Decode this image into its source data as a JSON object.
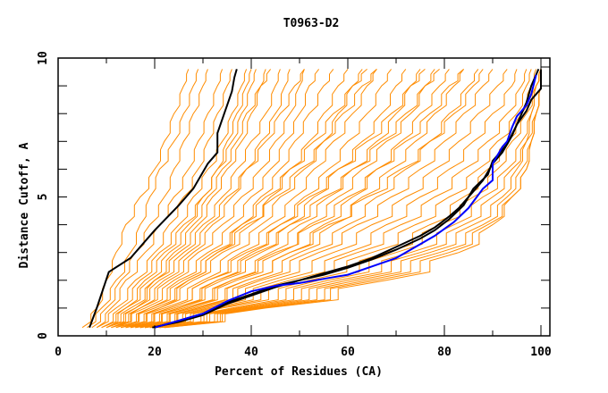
{
  "chart_data": {
    "type": "line",
    "title": "T0963-D2",
    "xlabel": "Percent of Residues (CA)",
    "ylabel": "Distance Cutoff, A",
    "xlim": [
      0,
      100
    ],
    "ylim": [
      0,
      10
    ],
    "x_major_ticks": [
      0,
      20,
      40,
      60,
      80,
      100
    ],
    "x_minor_ticks": [
      10,
      30,
      50,
      70,
      90
    ],
    "x_tick_labels": [
      "0",
      "20",
      "40",
      "60",
      "80",
      "100"
    ],
    "y_major_ticks": [
      0,
      5,
      10
    ],
    "y_minor_ticks": [
      1,
      2,
      3,
      4,
      6,
      7,
      8,
      9
    ],
    "y_tick_labels": [
      "0",
      "5",
      "10"
    ],
    "grid": false,
    "legend": "none",
    "colors": {
      "models": "#FF8C00",
      "highlight_black": "#000000",
      "highlight_blue": "#0000FF"
    },
    "y_levels": [
      0.3,
      1,
      2,
      3,
      4,
      5,
      6,
      7,
      8,
      9,
      9.6
    ],
    "series": [
      {
        "name": "model-curves",
        "color": "#FF8C00",
        "curves_x_at_y_levels": [
          [
            5,
            8,
            10,
            12,
            14,
            17,
            20,
            22,
            24,
            26,
            27
          ],
          [
            6,
            9,
            12,
            15,
            17,
            19,
            21,
            24,
            26,
            28,
            29
          ],
          [
            7,
            10,
            13,
            16,
            19,
            22,
            24,
            26,
            28,
            30,
            31
          ],
          [
            8,
            11,
            14,
            18,
            21,
            24,
            27,
            29,
            31,
            33,
            34
          ],
          [
            8,
            12,
            16,
            20,
            23,
            26,
            29,
            31,
            33,
            35,
            36
          ],
          [
            9,
            13,
            17,
            21,
            25,
            28,
            31,
            34,
            36,
            38,
            39
          ],
          [
            9,
            14,
            19,
            23,
            27,
            30,
            33,
            36,
            38,
            40,
            41
          ],
          [
            10,
            15,
            20,
            25,
            29,
            32,
            35,
            38,
            40,
            42,
            43
          ],
          [
            10,
            16,
            21,
            26,
            30,
            34,
            37,
            40,
            43,
            45,
            46
          ],
          [
            11,
            17,
            23,
            28,
            32,
            36,
            39,
            42,
            45,
            47,
            48
          ],
          [
            11,
            18,
            24,
            29,
            34,
            38,
            42,
            45,
            48,
            50,
            51
          ],
          [
            12,
            19,
            25,
            31,
            36,
            40,
            44,
            47,
            50,
            52,
            54
          ],
          [
            12,
            20,
            27,
            33,
            38,
            42,
            46,
            49,
            52,
            55,
            57
          ],
          [
            13,
            21,
            28,
            34,
            40,
            44,
            48,
            52,
            55,
            58,
            60
          ],
          [
            13,
            22,
            30,
            36,
            42,
            46,
            51,
            55,
            58,
            61,
            63
          ],
          [
            14,
            23,
            31,
            38,
            44,
            49,
            53,
            57,
            61,
            64,
            66
          ],
          [
            14,
            24,
            33,
            40,
            46,
            51,
            56,
            60,
            64,
            67,
            69
          ],
          [
            15,
            25,
            34,
            42,
            48,
            53,
            58,
            63,
            67,
            70,
            72
          ],
          [
            15,
            26,
            36,
            44,
            50,
            56,
            61,
            66,
            70,
            73,
            75
          ],
          [
            16,
            27,
            37,
            46,
            52,
            58,
            63,
            68,
            73,
            76,
            78
          ],
          [
            16,
            28,
            39,
            48,
            55,
            61,
            66,
            71,
            75,
            79,
            81
          ],
          [
            17,
            29,
            41,
            50,
            57,
            63,
            69,
            74,
            78,
            82,
            84
          ],
          [
            17,
            30,
            42,
            52,
            60,
            66,
            72,
            77,
            81,
            85,
            87
          ],
          [
            18,
            31,
            44,
            54,
            62,
            69,
            75,
            80,
            84,
            88,
            90
          ],
          [
            18,
            32,
            46,
            57,
            65,
            72,
            78,
            83,
            87,
            91,
            93
          ],
          [
            19,
            33,
            48,
            60,
            68,
            75,
            81,
            86,
            90,
            94,
            95
          ],
          [
            19,
            34,
            50,
            62,
            71,
            78,
            84,
            89,
            93,
            96,
            97
          ],
          [
            20,
            36,
            52,
            65,
            74,
            81,
            87,
            91,
            95,
            97,
            98
          ],
          [
            20,
            37,
            54,
            68,
            77,
            84,
            89,
            93,
            96,
            98,
            99
          ],
          [
            20,
            38,
            56,
            70,
            79,
            86,
            91,
            94,
            97,
            99,
            100
          ],
          [
            20,
            39,
            58,
            73,
            82,
            88,
            93,
            96,
            98,
            99,
            100
          ],
          [
            21,
            40,
            60,
            75,
            84,
            90,
            94,
            97,
            98,
            99,
            100
          ],
          [
            21,
            41,
            62,
            77,
            86,
            92,
            95,
            97,
            99,
            100,
            100
          ],
          [
            21,
            42,
            64,
            79,
            88,
            93,
            96,
            98,
            99,
            100,
            100
          ],
          [
            22,
            42,
            66,
            81,
            89,
            94,
            97,
            98,
            99,
            100,
            100
          ],
          [
            22,
            43,
            68,
            83,
            90,
            94,
            97,
            98,
            99,
            100,
            100
          ],
          [
            10,
            14,
            18,
            22,
            26,
            30,
            33,
            35,
            37,
            39,
            40
          ],
          [
            12,
            17,
            22,
            27,
            31,
            35,
            39,
            43,
            46,
            49,
            51
          ],
          [
            14,
            21,
            27,
            33,
            39,
            45,
            50,
            55,
            59,
            63,
            66
          ],
          [
            16,
            25,
            33,
            41,
            48,
            55,
            61,
            67,
            72,
            76,
            79
          ],
          [
            18,
            29,
            39,
            48,
            56,
            64,
            71,
            77,
            82,
            86,
            88
          ],
          [
            11,
            16,
            20,
            24,
            28,
            31,
            34,
            37,
            39,
            42,
            44
          ],
          [
            13,
            19,
            26,
            32,
            38,
            43,
            48,
            53,
            57,
            61,
            64
          ],
          [
            15,
            23,
            31,
            39,
            46,
            52,
            58,
            64,
            69,
            73,
            76
          ],
          [
            17,
            27,
            36,
            45,
            53,
            60,
            66,
            72,
            77,
            81,
            84
          ]
        ]
      },
      {
        "name": "black-left",
        "color": "#000000",
        "points": [
          [
            6.5,
            0.3
          ],
          [
            8,
            1.0
          ],
          [
            10.5,
            2.3
          ],
          [
            15,
            2.8
          ],
          [
            20,
            3.8
          ],
          [
            25,
            4.7
          ],
          [
            28,
            5.3
          ],
          [
            31,
            6.2
          ],
          [
            33,
            6.6
          ],
          [
            33,
            7.3
          ],
          [
            35,
            8.3
          ],
          [
            36,
            8.8
          ],
          [
            36.5,
            9.3
          ],
          [
            37,
            9.6
          ]
        ]
      },
      {
        "name": "black-right-1",
        "color": "#000000",
        "points": [
          [
            20,
            0.3
          ],
          [
            25,
            0.55
          ],
          [
            30,
            0.8
          ],
          [
            35,
            1.2
          ],
          [
            40,
            1.5
          ],
          [
            45,
            1.8
          ],
          [
            50,
            2.0
          ],
          [
            55,
            2.25
          ],
          [
            60,
            2.5
          ],
          [
            65,
            2.8
          ],
          [
            70,
            3.2
          ],
          [
            75,
            3.6
          ],
          [
            78,
            3.9
          ],
          [
            81,
            4.3
          ],
          [
            83,
            4.6
          ],
          [
            86,
            5.2
          ],
          [
            88,
            5.6
          ],
          [
            90,
            6.2
          ],
          [
            92,
            6.6
          ],
          [
            94,
            7.2
          ],
          [
            96,
            8.0
          ],
          [
            97,
            8.4
          ],
          [
            98,
            9.0
          ],
          [
            99.5,
            9.6
          ]
        ]
      },
      {
        "name": "black-right-2",
        "color": "#000000",
        "points": [
          [
            19.5,
            0.3
          ],
          [
            25,
            0.5
          ],
          [
            30,
            0.75
          ],
          [
            35,
            1.15
          ],
          [
            40,
            1.45
          ],
          [
            45,
            1.75
          ],
          [
            50,
            2.0
          ],
          [
            55,
            2.2
          ],
          [
            60,
            2.45
          ],
          [
            65,
            2.75
          ],
          [
            70,
            3.1
          ],
          [
            75,
            3.5
          ],
          [
            78,
            3.8
          ],
          [
            81,
            4.2
          ],
          [
            84,
            4.7
          ],
          [
            86,
            5.3
          ],
          [
            89,
            5.8
          ],
          [
            90,
            6.3
          ],
          [
            92,
            6.7
          ],
          [
            93,
            6.9
          ],
          [
            95,
            7.6
          ],
          [
            97,
            8.1
          ],
          [
            98,
            8.5
          ],
          [
            100,
            8.9
          ],
          [
            100,
            9.6
          ]
        ]
      },
      {
        "name": "blue",
        "color": "#0000FF",
        "points": [
          [
            20,
            0.3
          ],
          [
            25,
            0.55
          ],
          [
            30,
            0.8
          ],
          [
            35,
            1.25
          ],
          [
            40,
            1.6
          ],
          [
            45,
            1.8
          ],
          [
            50,
            1.9
          ],
          [
            55,
            2.05
          ],
          [
            60,
            2.2
          ],
          [
            65,
            2.5
          ],
          [
            70,
            2.8
          ],
          [
            75,
            3.3
          ],
          [
            78,
            3.6
          ],
          [
            82,
            4.1
          ],
          [
            85,
            4.6
          ],
          [
            88,
            5.3
          ],
          [
            90,
            5.6
          ],
          [
            90,
            6.2
          ],
          [
            92,
            6.8
          ],
          [
            93,
            7.0
          ],
          [
            94,
            7.5
          ],
          [
            95,
            7.9
          ],
          [
            96,
            8.1
          ],
          [
            97,
            8.3
          ],
          [
            98,
            8.7
          ],
          [
            99,
            9.4
          ]
        ]
      }
    ]
  }
}
